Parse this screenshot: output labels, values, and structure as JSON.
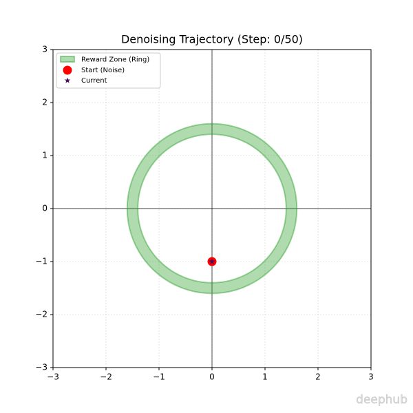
{
  "chart_data": {
    "type": "scatter",
    "title": "Denoising Trajectory (Step: 0/50)",
    "xlim": [
      -3,
      3
    ],
    "ylim": [
      -3,
      3
    ],
    "xticks": [
      {
        "value": -3,
        "label": "−3"
      },
      {
        "value": -2,
        "label": "−2"
      },
      {
        "value": -1,
        "label": "−1"
      },
      0,
      1,
      2,
      3
    ],
    "yticks": [
      {
        "value": -3,
        "label": "−3"
      },
      {
        "value": -2,
        "label": "−2"
      },
      {
        "value": -1,
        "label": "−1"
      },
      0,
      1,
      2,
      3
    ],
    "grid": true,
    "legend": "upper-left",
    "reward_zone": {
      "name": "Reward Zone (Ring)",
      "inner_radius": 1.4,
      "outer_radius": 1.6,
      "color": "#2ca02c"
    },
    "series": [
      {
        "name": "Start (Noise)",
        "color": "#ff0000",
        "marker": "circle",
        "x": [
          0
        ],
        "values": [
          -1
        ]
      },
      {
        "name": "Current",
        "color": "#4b0a5e",
        "marker": "star",
        "x": [
          0
        ],
        "values": [
          -1
        ]
      }
    ],
    "watermark": "deephub"
  }
}
